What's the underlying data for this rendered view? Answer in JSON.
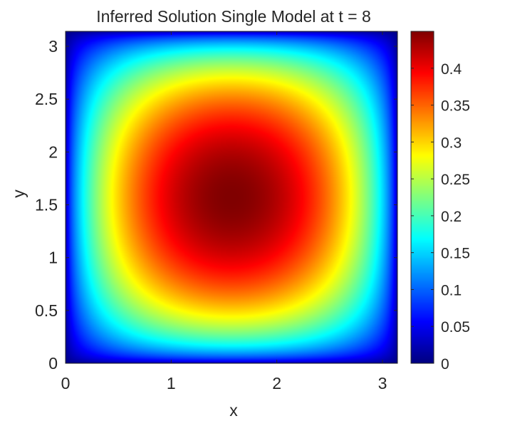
{
  "chart_data": {
    "type": "heatmap",
    "title": "Inferred Solution Single Model at t = 8",
    "xlabel": "x",
    "ylabel": "y",
    "xlim": [
      0,
      3.1416
    ],
    "ylim": [
      0,
      3.1416
    ],
    "xticks": [
      0,
      1,
      2,
      3
    ],
    "xtick_labels": [
      "0",
      "1",
      "2",
      "3"
    ],
    "yticks": [
      0,
      0.5,
      1,
      1.5,
      2,
      2.5,
      3
    ],
    "ytick_labels": [
      "0",
      "0.5",
      "1",
      "1.5",
      "2",
      "2.5",
      "3"
    ],
    "colormap": "jet",
    "clim": [
      0,
      0.45
    ],
    "colorbar_ticks": [
      0,
      0.05,
      0.1,
      0.15,
      0.2,
      0.25,
      0.3,
      0.35,
      0.4
    ],
    "colorbar_tick_labels": [
      "0",
      "0.05",
      "0.1",
      "0.15",
      "0.2",
      "0.25",
      "0.3",
      "0.35",
      "0.4"
    ],
    "field": {
      "peak_value": 0.45,
      "peak_location": [
        1.5708,
        1.5708
      ],
      "shape": "sin(x)^p * sin(y)^p",
      "exponent": 0.55
    }
  }
}
